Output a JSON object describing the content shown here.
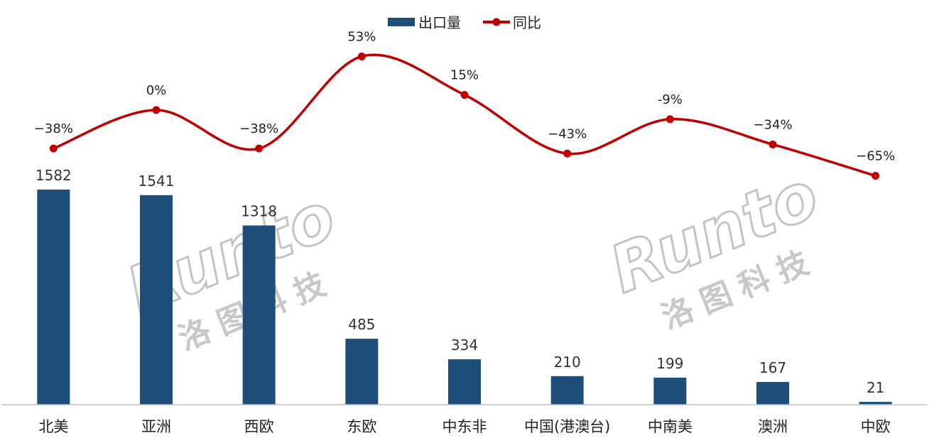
{
  "legend": {
    "bar_label": "出口量",
    "line_label": "同比"
  },
  "watermark": {
    "brand": "Runto",
    "brand_cn": "洛图科技"
  },
  "colors": {
    "bar": "#1f4e79",
    "line": "#c00000",
    "axis": "#bfbfbf",
    "watermark": "#c4c4c4"
  },
  "chart_data": {
    "type": "bar",
    "categories": [
      "北美",
      "亚洲",
      "西欧",
      "东欧",
      "中东非",
      "中国(港澳台)",
      "中南美",
      "澳洲",
      "中欧"
    ],
    "series": [
      {
        "name": "出口量",
        "type": "bar",
        "values": [
          1582,
          1541,
          1318,
          485,
          334,
          210,
          199,
          167,
          21
        ],
        "labels": [
          "1582",
          "1541",
          "1318",
          "485",
          "334",
          "210",
          "199",
          "167",
          "21"
        ]
      },
      {
        "name": "同比",
        "type": "line",
        "smooth": true,
        "values": [
          -38,
          0,
          -38,
          53,
          15,
          -43,
          -9,
          -34,
          -65
        ],
        "labels": [
          "−38%",
          "0%",
          "−38%",
          "53%",
          "15%",
          "−43%",
          "-9%",
          "−34%",
          "−65%"
        ]
      }
    ],
    "title": "",
    "xlabel": "",
    "ylabel": "",
    "legend_position": "top-center",
    "grid": false
  }
}
